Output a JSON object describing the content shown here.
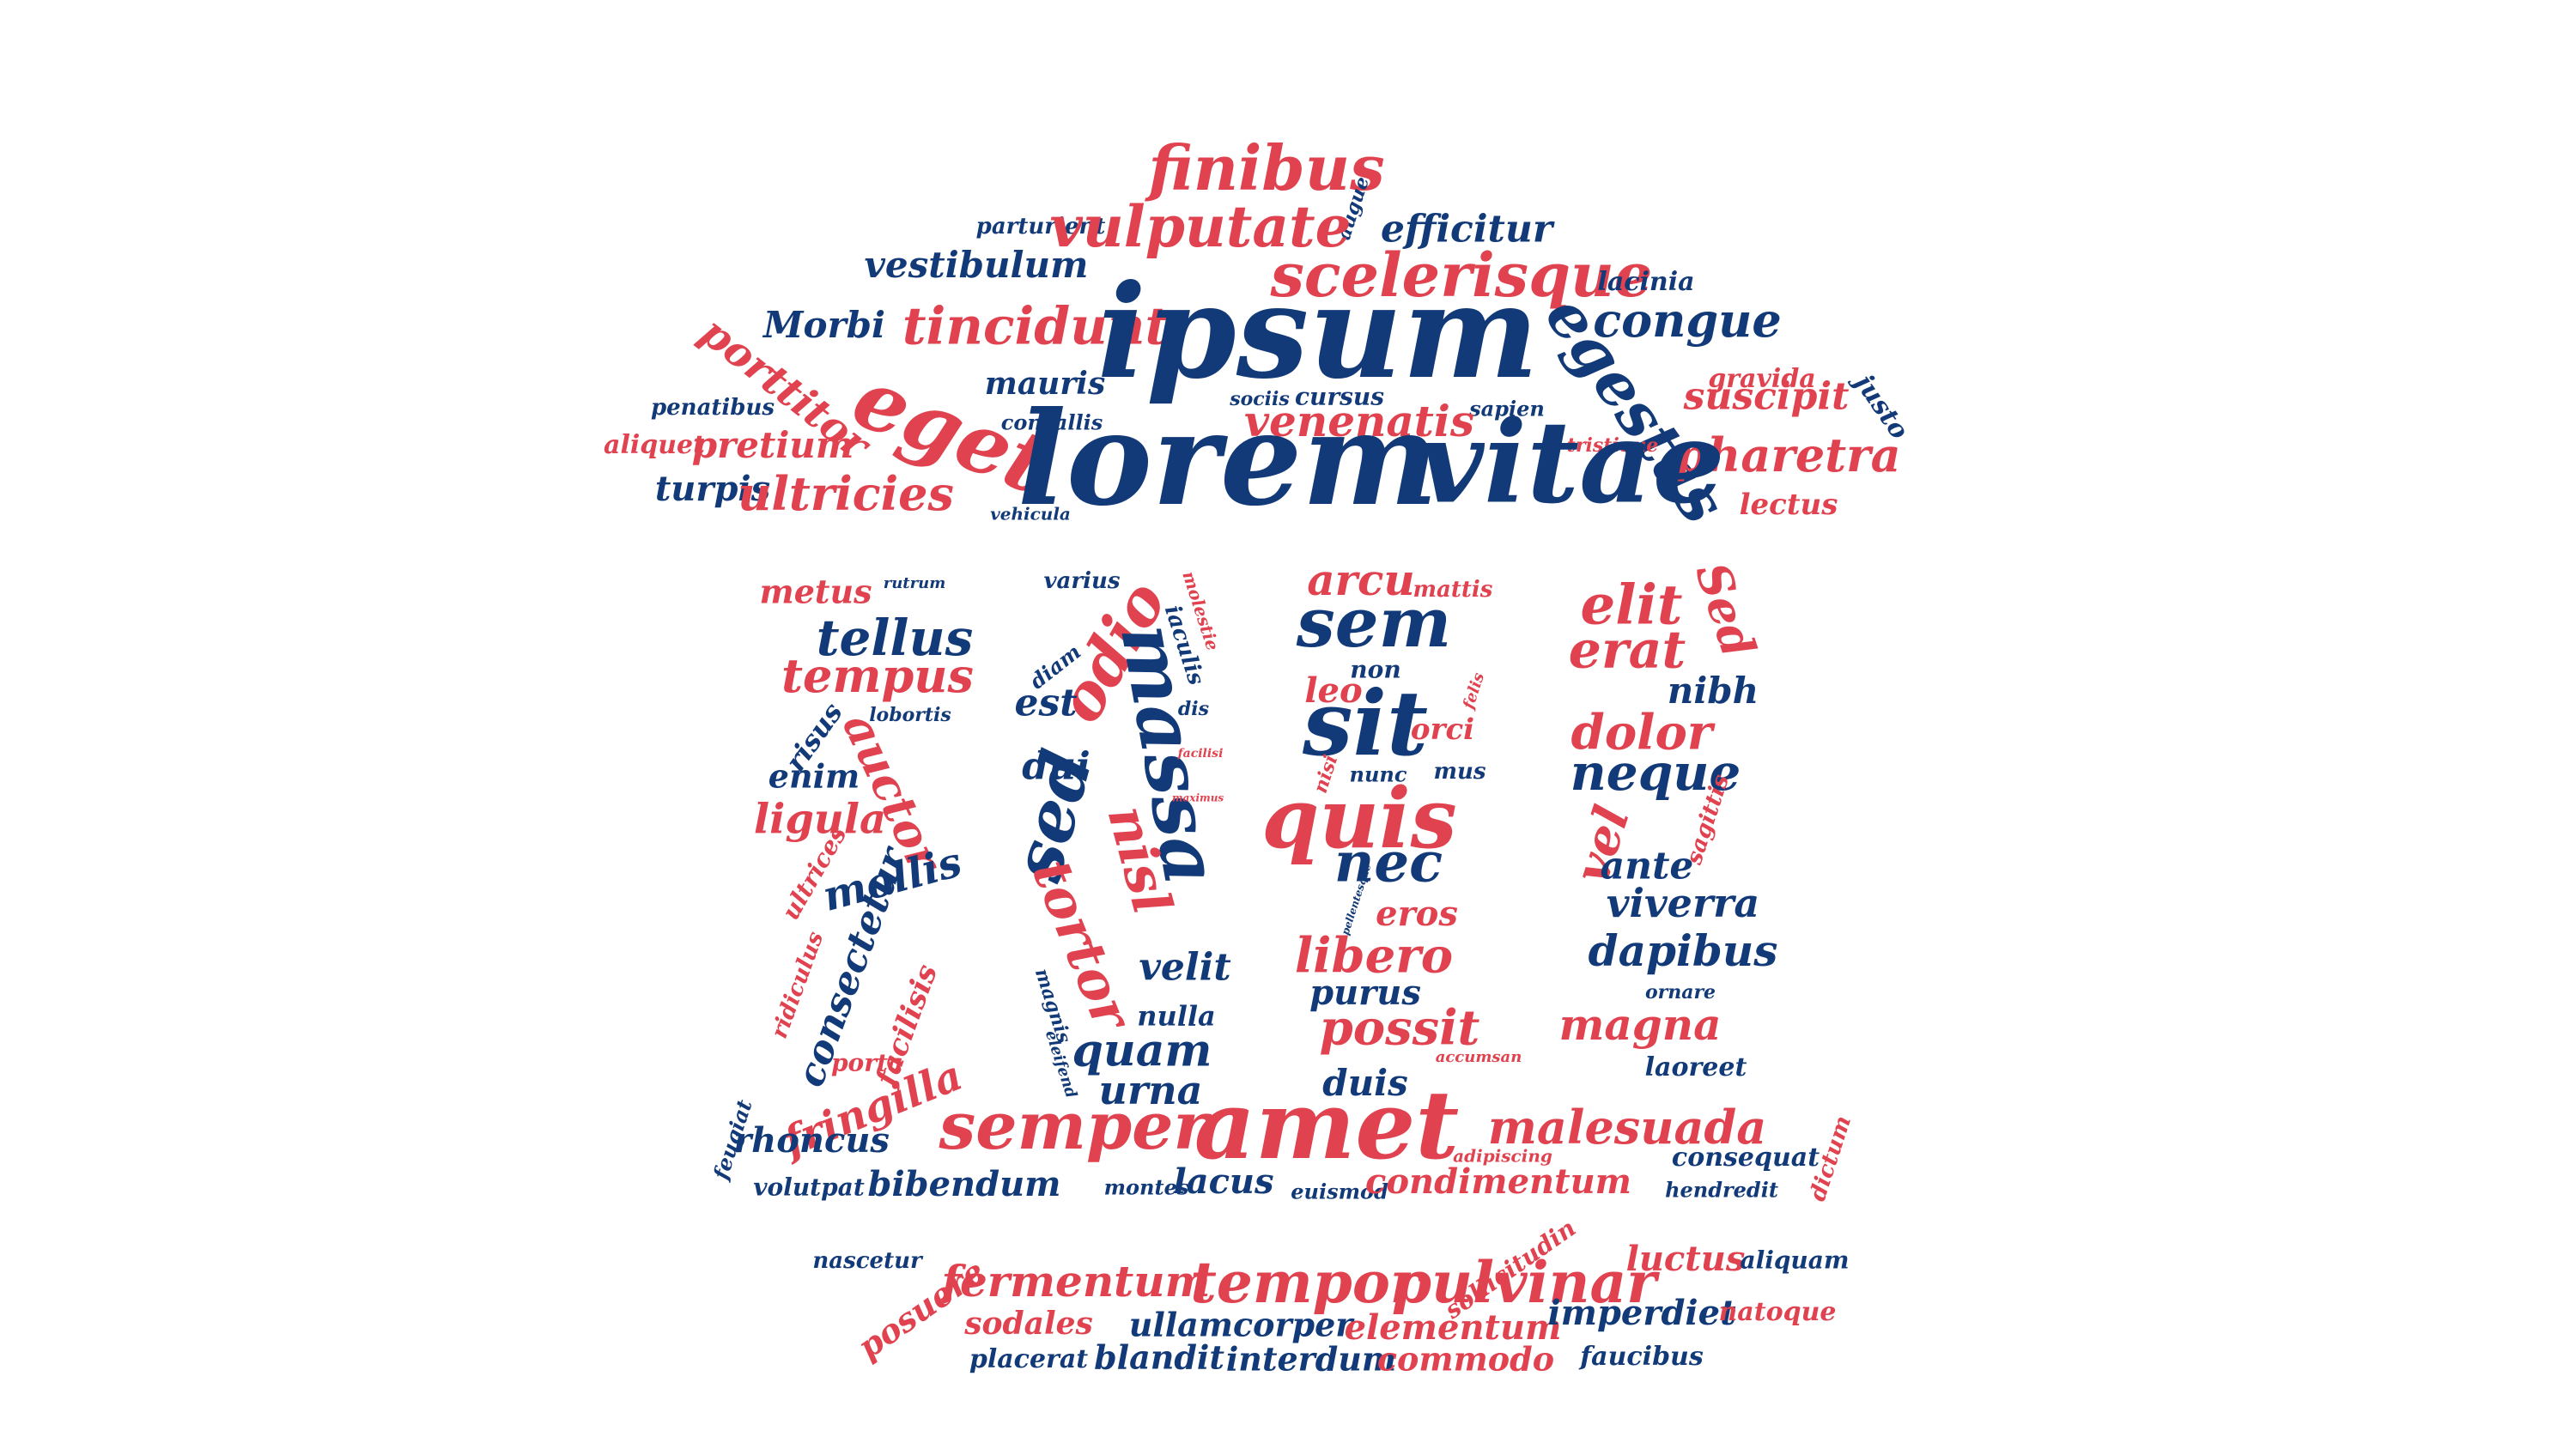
{
  "colors": {
    "red": "#e0424f",
    "blue": "#123a78",
    "background": "#ffffff"
  },
  "words": [
    {
      "text": "finibus",
      "color": "red"
    },
    {
      "text": "parturient",
      "color": "blue"
    },
    {
      "text": "augue",
      "color": "blue"
    },
    {
      "text": "vulputate",
      "color": "red"
    },
    {
      "text": "efficitur",
      "color": "blue"
    },
    {
      "text": "vestibulum",
      "color": "blue"
    },
    {
      "text": "scelerisque",
      "color": "red"
    },
    {
      "text": "lacinia",
      "color": "blue"
    },
    {
      "text": "Morbi",
      "color": "blue"
    },
    {
      "text": "tincidunt",
      "color": "red"
    },
    {
      "text": "ipsum",
      "color": "blue"
    },
    {
      "text": "congue",
      "color": "blue"
    },
    {
      "text": "porttitor",
      "color": "red"
    },
    {
      "text": "egestas",
      "color": "blue"
    },
    {
      "text": "gravida",
      "color": "red"
    },
    {
      "text": "justo",
      "color": "blue"
    },
    {
      "text": "eget",
      "color": "red"
    },
    {
      "text": "mauris",
      "color": "blue"
    },
    {
      "text": "cursus",
      "color": "blue"
    },
    {
      "text": "suscipit",
      "color": "red"
    },
    {
      "text": "penatibus",
      "color": "blue"
    },
    {
      "text": "sociis",
      "color": "blue"
    },
    {
      "text": "sapien",
      "color": "blue"
    },
    {
      "text": "convallis",
      "color": "blue"
    },
    {
      "text": "venenatis",
      "color": "red"
    },
    {
      "text": "aliquet",
      "color": "red"
    },
    {
      "text": "pretium",
      "color": "red"
    },
    {
      "text": "tristique",
      "color": "red"
    },
    {
      "text": "pharetra",
      "color": "red"
    },
    {
      "text": "lorem",
      "color": "blue"
    },
    {
      "text": "vitae",
      "color": "blue"
    },
    {
      "text": "turpis",
      "color": "blue"
    },
    {
      "text": "ultricies",
      "color": "red"
    },
    {
      "text": "vehicula",
      "color": "blue"
    },
    {
      "text": "lectus",
      "color": "red"
    },
    {
      "text": "metus",
      "color": "red"
    },
    {
      "text": "rutrum",
      "color": "blue"
    },
    {
      "text": "varius",
      "color": "blue"
    },
    {
      "text": "molestie",
      "color": "red"
    },
    {
      "text": "arcu",
      "color": "red"
    },
    {
      "text": "mattis",
      "color": "red"
    },
    {
      "text": "elit",
      "color": "red"
    },
    {
      "text": "Sed",
      "color": "red"
    },
    {
      "text": "tellus",
      "color": "blue"
    },
    {
      "text": "odio",
      "color": "red"
    },
    {
      "text": "iaculis",
      "color": "blue"
    },
    {
      "text": "sem",
      "color": "blue"
    },
    {
      "text": "erat",
      "color": "red"
    },
    {
      "text": "tempus",
      "color": "red"
    },
    {
      "text": "diam",
      "color": "blue"
    },
    {
      "text": "massa",
      "color": "blue"
    },
    {
      "text": "non",
      "color": "blue"
    },
    {
      "text": "leo",
      "color": "red"
    },
    {
      "text": "felis",
      "color": "red"
    },
    {
      "text": "nibh",
      "color": "blue"
    },
    {
      "text": "lobortis",
      "color": "blue"
    },
    {
      "text": "est",
      "color": "blue"
    },
    {
      "text": "dis",
      "color": "blue"
    },
    {
      "text": "sit",
      "color": "blue"
    },
    {
      "text": "orci",
      "color": "red"
    },
    {
      "text": "dolor",
      "color": "red"
    },
    {
      "text": "risus",
      "color": "blue"
    },
    {
      "text": "auctor",
      "color": "red"
    },
    {
      "text": "dui",
      "color": "blue"
    },
    {
      "text": "facilisi",
      "color": "red"
    },
    {
      "text": "nisi",
      "color": "red"
    },
    {
      "text": "nunc",
      "color": "blue"
    },
    {
      "text": "mus",
      "color": "blue"
    },
    {
      "text": "neque",
      "color": "blue"
    },
    {
      "text": "enim",
      "color": "blue"
    },
    {
      "text": "maximus",
      "color": "red"
    },
    {
      "text": "ligula",
      "color": "red"
    },
    {
      "text": "sed",
      "color": "blue"
    },
    {
      "text": "quis",
      "color": "red"
    },
    {
      "text": "sagittis",
      "color": "red"
    },
    {
      "text": "vel",
      "color": "red"
    },
    {
      "text": "nisl",
      "color": "red"
    },
    {
      "text": "nec",
      "color": "blue"
    },
    {
      "text": "ante",
      "color": "blue"
    },
    {
      "text": "ultrices",
      "color": "red"
    },
    {
      "text": "mollis",
      "color": "blue"
    },
    {
      "text": "pellentesque",
      "color": "blue"
    },
    {
      "text": "eros",
      "color": "red"
    },
    {
      "text": "tortor",
      "color": "red"
    },
    {
      "text": "viverra",
      "color": "blue"
    },
    {
      "text": "consectetur",
      "color": "blue"
    },
    {
      "text": "ridiculus",
      "color": "red"
    },
    {
      "text": "magnis",
      "color": "blue"
    },
    {
      "text": "velit",
      "color": "blue"
    },
    {
      "text": "libero",
      "color": "red"
    },
    {
      "text": "dapibus",
      "color": "blue"
    },
    {
      "text": "facilisis",
      "color": "red"
    },
    {
      "text": "purus",
      "color": "blue"
    },
    {
      "text": "ornare",
      "color": "blue"
    },
    {
      "text": "nulla",
      "color": "blue"
    },
    {
      "text": "possit",
      "color": "red"
    },
    {
      "text": "eleifend",
      "color": "blue"
    },
    {
      "text": "quam",
      "color": "blue"
    },
    {
      "text": "magna",
      "color": "red"
    },
    {
      "text": "porta",
      "color": "red"
    },
    {
      "text": "accumsan",
      "color": "red"
    },
    {
      "text": "laoreet",
      "color": "blue"
    },
    {
      "text": "fringilla",
      "color": "red"
    },
    {
      "text": "urna",
      "color": "blue"
    },
    {
      "text": "duis",
      "color": "blue"
    },
    {
      "text": "feugiat",
      "color": "blue"
    },
    {
      "text": "semper",
      "color": "red"
    },
    {
      "text": "amet",
      "color": "red"
    },
    {
      "text": "malesuada",
      "color": "red"
    },
    {
      "text": "dictum",
      "color": "red"
    },
    {
      "text": "rhoncus",
      "color": "blue"
    },
    {
      "text": "adipiscing",
      "color": "red"
    },
    {
      "text": "consequat",
      "color": "blue"
    },
    {
      "text": "volutpat",
      "color": "blue"
    },
    {
      "text": "bibendum",
      "color": "blue"
    },
    {
      "text": "montes",
      "color": "blue"
    },
    {
      "text": "lacus",
      "color": "blue"
    },
    {
      "text": "euismod",
      "color": "blue"
    },
    {
      "text": "condimentum",
      "color": "red"
    },
    {
      "text": "hendredit",
      "color": "blue"
    },
    {
      "text": "nascetur",
      "color": "blue"
    },
    {
      "text": "sollicitudin",
      "color": "red"
    },
    {
      "text": "luctus",
      "color": "red"
    },
    {
      "text": "aliquam",
      "color": "blue"
    },
    {
      "text": "fermentum",
      "color": "red"
    },
    {
      "text": "tempor",
      "color": "red"
    },
    {
      "text": "pulvinar",
      "color": "red"
    },
    {
      "text": "posuere",
      "color": "red"
    },
    {
      "text": "sodales",
      "color": "red"
    },
    {
      "text": "ullamcorper",
      "color": "blue"
    },
    {
      "text": "elementum",
      "color": "red"
    },
    {
      "text": "imperdiet",
      "color": "blue"
    },
    {
      "text": "natoque",
      "color": "red"
    },
    {
      "text": "placerat",
      "color": "blue"
    },
    {
      "text": "blandit",
      "color": "blue"
    },
    {
      "text": "interdum",
      "color": "blue"
    },
    {
      "text": "commodo",
      "color": "red"
    },
    {
      "text": "faucibus",
      "color": "blue"
    }
  ]
}
